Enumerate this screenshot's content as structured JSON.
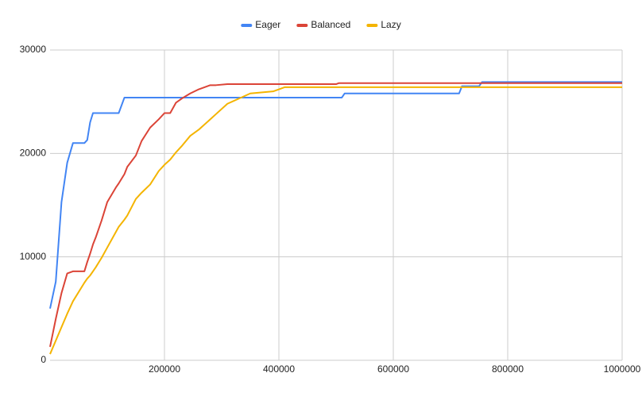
{
  "chart_data": {
    "type": "line",
    "x": [
      0,
      10000,
      20000,
      30000,
      40000,
      60000,
      65000,
      70000,
      75000,
      80000,
      90000,
      100000,
      115000,
      120000,
      130000,
      135000,
      150000,
      160000,
      175000,
      190000,
      200000,
      210000,
      220000,
      230000,
      245000,
      260000,
      280000,
      290000,
      310000,
      330000,
      350000,
      390000,
      410000,
      500000,
      505000,
      510000,
      515000,
      715000,
      720000,
      750000,
      755000,
      1000000
    ],
    "series": [
      {
        "name": "Eager",
        "color": "#4285f4",
        "values": [
          5000,
          7600,
          15300,
          19100,
          21000,
          21000,
          21300,
          23000,
          23900,
          23900,
          23900,
          23900,
          23900,
          23900,
          25400,
          25400,
          25400,
          25400,
          25400,
          25400,
          25400,
          25400,
          25400,
          25400,
          25400,
          25400,
          25400,
          25400,
          25400,
          25400,
          25400,
          25400,
          25400,
          25400,
          25400,
          25400,
          25800,
          25800,
          26500,
          26500,
          26900,
          26900
        ]
      },
      {
        "name": "Balanced",
        "color": "#db4437",
        "values": [
          1300,
          4000,
          6500,
          8400,
          8600,
          8600,
          9500,
          10300,
          11200,
          11900,
          13500,
          15300,
          16700,
          17100,
          18000,
          18700,
          19800,
          21200,
          22500,
          23300,
          23900,
          23900,
          24900,
          25300,
          25800,
          26200,
          26600,
          26600,
          26700,
          26700,
          26700,
          26700,
          26700,
          26700,
          26800,
          26800,
          26800,
          26800,
          26800,
          26800,
          26800,
          26800
        ]
      },
      {
        "name": "Lazy",
        "color": "#f4b400",
        "values": [
          600,
          1900,
          3200,
          4500,
          5700,
          7500,
          7900,
          8200,
          8600,
          9000,
          9900,
          10900,
          12400,
          12900,
          13600,
          14000,
          15600,
          16200,
          17000,
          18300,
          18900,
          19400,
          20100,
          20700,
          21700,
          22300,
          23300,
          23800,
          24800,
          25300,
          25800,
          26000,
          26400,
          26400,
          26400,
          26400,
          26400,
          26400,
          26400,
          26400,
          26400,
          26400
        ]
      }
    ],
    "xlim": [
      0,
      1000000
    ],
    "xticks": [
      200000,
      400000,
      600000,
      800000,
      1000000
    ],
    "ylim": [
      0,
      30000
    ],
    "yticks": [
      0,
      10000,
      20000,
      30000
    ],
    "grid": true,
    "legend": "top"
  }
}
